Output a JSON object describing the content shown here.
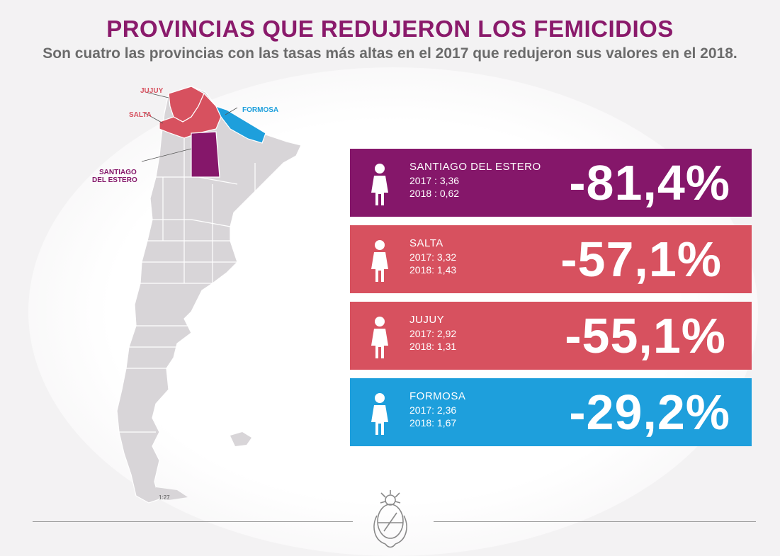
{
  "header": {
    "title": "PROVINCIAS QUE REDUJERON LOS FEMICIDIOS",
    "subtitle": "Son cuatro las provincias con las tasas más altas en el 2017 que redujeron sus valores en el 2018."
  },
  "map": {
    "labels": {
      "jujuy": "JUJUY",
      "salta": "SALTA",
      "formosa": "FORMOSA",
      "santiago_line1": "SANTIAGO",
      "santiago_line2": "DEL ESTERO",
      "scale": "1:27"
    }
  },
  "provinces": [
    {
      "name": "SANTIAGO DEL ESTERO",
      "y2017": "2017 :  3,36",
      "y2018": "2018 :  0,62",
      "change": "-81,4%"
    },
    {
      "name": "SALTA",
      "y2017": "2017: 3,32",
      "y2018": "2018: 1,43",
      "change": "-57,1%"
    },
    {
      "name": "JUJUY",
      "y2017": "2017: 2,92",
      "y2018": "2018: 1,31",
      "change": "-55,1%"
    },
    {
      "name": "FORMOSA",
      "y2017": "2017: 2,36",
      "y2018": "2018: 1,67",
      "change": "-29,2%"
    }
  ],
  "colors": {
    "title": "#8a1a6b",
    "santiago": "#85176a",
    "salta": "#d7515f",
    "jujuy": "#d7515f",
    "formosa": "#1e9fdc",
    "map_gray": "#d8d5d8"
  },
  "icons": {
    "woman": "woman-icon",
    "seal": "coat-of-arms-icon"
  }
}
